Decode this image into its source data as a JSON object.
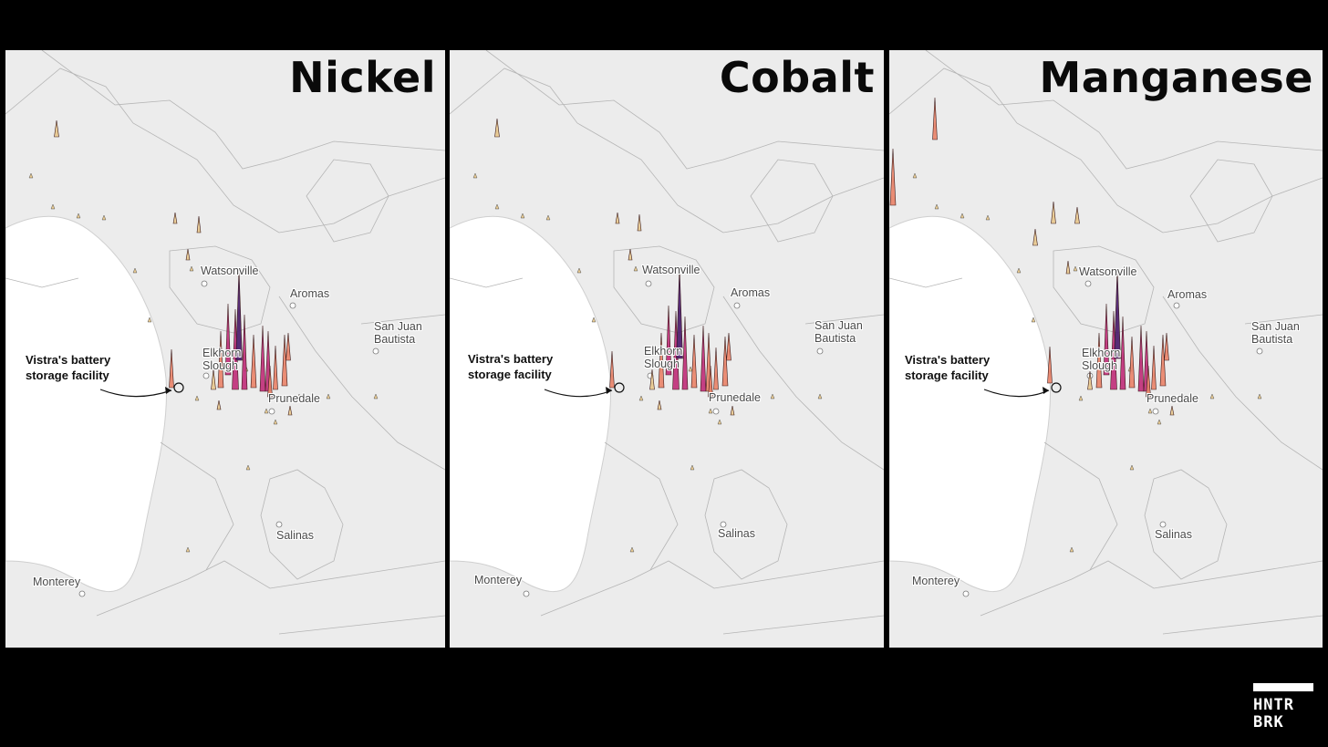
{
  "panels": [
    {
      "metal": "Nickel",
      "places": {
        "watsonville": "Watsonville",
        "aromas": "Aromas",
        "san_juan": "San Juan\nBautista",
        "elkhorn": "Elkhorn\nSlough",
        "prunedale": "Prunedale",
        "salinas": "Salinas",
        "monterey": "Monterey"
      },
      "facility_label": "Vistra's battery\nstorage facility"
    },
    {
      "metal": "Cobalt",
      "places": {
        "watsonville": "Watsonville",
        "aromas": "Aromas",
        "san_juan": "San Juan\nBautista",
        "elkhorn": "Elkhorn\nSlough",
        "prunedale": "Prunedale",
        "salinas": "Salinas",
        "monterey": "Monterey"
      },
      "facility_label": "Vistra's battery\nstorage facility"
    },
    {
      "metal": "Manganese",
      "places": {
        "watsonville": "Watsonville",
        "aromas": "Aromas",
        "san_juan": "San Juan\nBautista",
        "elkhorn": "Elkhorn\nSlough",
        "prunedale": "Prunedale",
        "salinas": "Salinas",
        "monterey": "Monterey"
      },
      "facility_label": "Vistra's battery\nstorage facility"
    }
  ],
  "logo": {
    "text": "HNTR\nBRK"
  },
  "colors": {
    "background": "#000000",
    "land": "#ececec",
    "water": "#ffffff",
    "spike_low": "#e8c98f",
    "spike_mid": "#e9846a",
    "spike_high": "#c0307a",
    "spike_max": "#4a1b6a"
  }
}
